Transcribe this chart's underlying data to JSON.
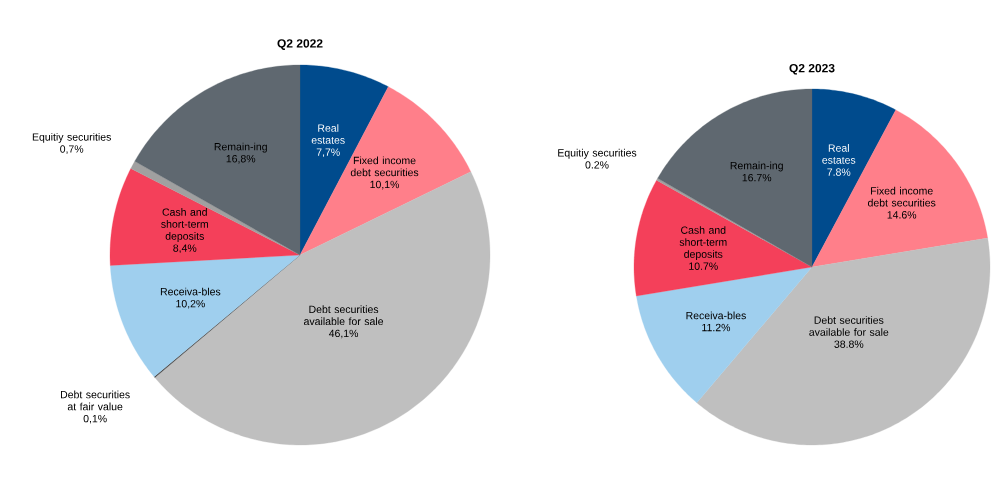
{
  "chart_data": [
    {
      "type": "pie",
      "title": "Q2 2022",
      "categories": [
        "Real estates",
        "Fixed income debt securities",
        "Debt securities available for sale",
        "Debt securities at fair value",
        "Receiva-bles",
        "Cash and short-term deposits",
        "Equitiy securities",
        "Remain-ing"
      ],
      "values": [
        7.7,
        10.1,
        46.1,
        0.1,
        10.2,
        8.4,
        0.7,
        16.8
      ],
      "value_labels": [
        "7,7%",
        "10,1%",
        "46,1%",
        "0,1%",
        "10,2%",
        "8,4%",
        "0,7%",
        "16,8%"
      ],
      "colors": [
        "#004b8d",
        "#ff7f8a",
        "#bfbfbf",
        "#404040",
        "#9fcfee",
        "#f4405a",
        "#a0a0a0",
        "#5f6870"
      ]
    },
    {
      "type": "pie",
      "title": "Q2 2023",
      "categories": [
        "Real estates",
        "Fixed income debt securities",
        "Debt securities available for sale",
        "Receiva-bles",
        "Cash and short-term deposits",
        "Equitiy securities",
        "Remain-ing"
      ],
      "values": [
        7.8,
        14.6,
        38.8,
        11.2,
        10.7,
        0.2,
        16.7
      ],
      "value_labels": [
        "7.8%",
        "14.6%",
        "38.8%",
        "11.2%",
        "10.7%",
        "0.2%",
        "16.7%"
      ],
      "colors": [
        "#004b8d",
        "#ff7f8a",
        "#bfbfbf",
        "#9fcfee",
        "#f4405a",
        "#a0a0a0",
        "#5f6870"
      ]
    }
  ]
}
